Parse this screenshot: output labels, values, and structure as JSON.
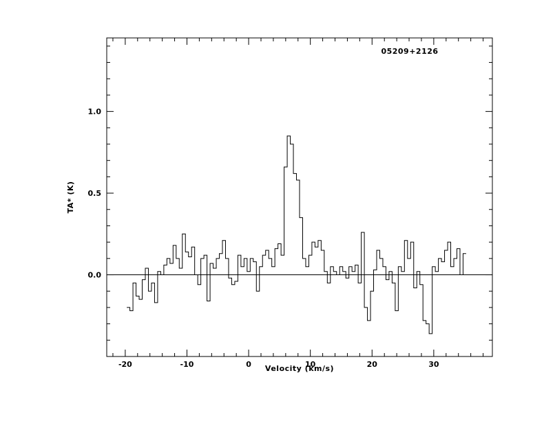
{
  "figure": {
    "background": "#ffffff",
    "line_color": "#000000"
  },
  "chart_data": {
    "type": "line",
    "style": "histogram-step",
    "title": "05209+2126",
    "xlabel": "Velocity (km/s)",
    "ylabel": "TA* (K)",
    "xlim": [
      -23,
      39.5
    ],
    "ylim": [
      -0.5,
      1.45
    ],
    "x_major_ticks": [
      -20,
      -10,
      0,
      10,
      20,
      30
    ],
    "x_major_tick_labels": [
      "-20",
      "-10",
      "0",
      "10",
      "20",
      "30"
    ],
    "x_minor_step": 2,
    "y_major_ticks": [
      0.0,
      0.5,
      1.0
    ],
    "y_major_tick_labels": [
      "0.0",
      "0.5",
      "1.0"
    ],
    "y_minor_step": 0.1,
    "baseline": 0.0,
    "x_start": -19.5,
    "dx": 0.5,
    "values": [
      -0.2,
      -0.22,
      -0.05,
      -0.13,
      -0.15,
      -0.03,
      0.04,
      -0.1,
      -0.05,
      -0.17,
      0.02,
      0.0,
      0.06,
      0.1,
      0.07,
      0.18,
      0.1,
      0.04,
      0.25,
      0.14,
      0.11,
      0.17,
      0.0,
      -0.06,
      0.1,
      0.12,
      -0.16,
      0.07,
      0.04,
      0.1,
      0.13,
      0.21,
      0.1,
      -0.02,
      -0.06,
      -0.04,
      0.12,
      0.05,
      0.1,
      0.02,
      0.1,
      0.08,
      -0.1,
      0.05,
      0.12,
      0.15,
      0.1,
      0.05,
      0.16,
      0.19,
      0.12,
      0.66,
      0.85,
      0.8,
      0.62,
      0.58,
      0.35,
      0.1,
      0.05,
      0.12,
      0.2,
      0.17,
      0.21,
      0.15,
      0.02,
      -0.05,
      0.05,
      0.02,
      0.0,
      0.05,
      0.02,
      -0.02,
      0.05,
      0.02,
      0.06,
      -0.05,
      0.26,
      -0.2,
      -0.28,
      -0.1,
      0.03,
      0.15,
      0.1,
      0.05,
      -0.03,
      0.02,
      -0.05,
      -0.22,
      0.05,
      0.02,
      0.21,
      0.1,
      0.2,
      -0.08,
      0.02,
      -0.06,
      -0.28,
      -0.3,
      -0.36,
      0.05,
      0.02,
      0.1,
      0.08,
      0.15,
      0.2,
      0.05,
      0.1,
      0.16,
      0.0,
      0.13
    ]
  }
}
